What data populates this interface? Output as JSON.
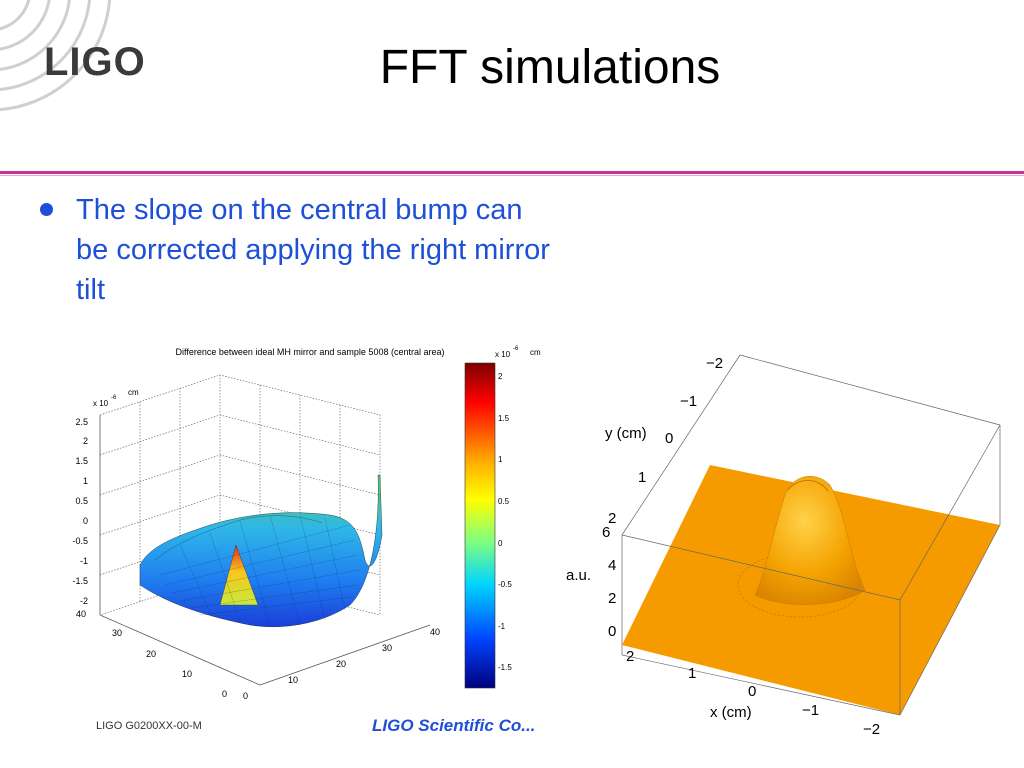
{
  "slide": {
    "logo_text": "LIGO",
    "title": "FFT simulations",
    "bullet": "The slope on the central bump can be corrected applying the right mirror tilt",
    "footer_left": "LIGO G0200XX-00-M",
    "footer_center": "LIGO Scientific Co..."
  },
  "colors": {
    "accent_rule": "#c8329a",
    "bullet": "#1d4fd8",
    "surface_orange": "#f59b00"
  },
  "left_plot": {
    "title": "Difference between ideal MH mirror and sample 5008 (central area)",
    "z_exponent": "x 10",
    "z_exponent_power": "-6",
    "z_unit": "cm",
    "z_ticks": [
      "2.5",
      "2",
      "1.5",
      "1",
      "0.5",
      "0",
      "-0.5",
      "-1",
      "-1.5",
      "-2"
    ],
    "x_ticks": [
      "0",
      "10",
      "20",
      "30",
      "40"
    ],
    "y_ticks": [
      "0",
      "10",
      "20",
      "30",
      "40"
    ],
    "colorbar": {
      "exponent": "x 10",
      "exponent_power": "-6",
      "unit": "cm",
      "ticks": [
        "2",
        "1.5",
        "1",
        "0.5",
        "0",
        "-0.5",
        "-1",
        "-1.5"
      ]
    }
  },
  "right_plot": {
    "y_label": "y (cm)",
    "x_label": "x (cm)",
    "z_label": "a.u.",
    "y_ticks": [
      "−2",
      "−1",
      "0",
      "1",
      "2"
    ],
    "x_ticks": [
      "2",
      "1",
      "0",
      "−1",
      "−2"
    ],
    "z_ticks": [
      "6",
      "4",
      "2",
      "0"
    ]
  }
}
